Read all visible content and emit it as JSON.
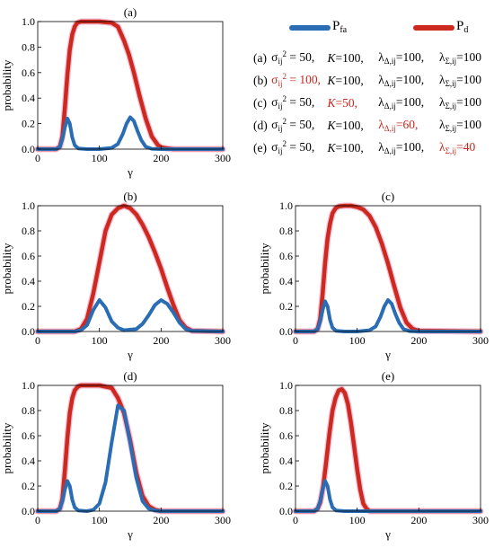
{
  "legend": {
    "pfa_label": "P",
    "pfa_sub": "fa",
    "pd_label": "P",
    "pd_sub": "d",
    "pfa_color": "#2a6db4",
    "pd_color": "#cc2a1f",
    "highlight_color": "#c4281e",
    "conditions": [
      {
        "id": "(a)",
        "sigma_val": "50,",
        "k_val": "100,",
        "ld_val": "100,",
        "ls_val": "100",
        "highlight": ""
      },
      {
        "id": "(b)",
        "sigma_val": "100,",
        "k_val": "100,",
        "ld_val": "100,",
        "ls_val": "100",
        "highlight": "sigma"
      },
      {
        "id": "(c)",
        "sigma_val": "50,",
        "k_val": "50,",
        "ld_val": "100,",
        "ls_val": "100",
        "highlight": "k"
      },
      {
        "id": "(d)",
        "sigma_val": "50,",
        "k_val": "100,",
        "ld_val": "60,",
        "ls_val": "100",
        "highlight": "ld"
      },
      {
        "id": "(e)",
        "sigma_val": "50,",
        "k_val": "100,",
        "ld_val": "100,",
        "ls_val": "40",
        "highlight": "ls"
      }
    ]
  },
  "chart_data": [
    {
      "type": "line",
      "panel_title": "(a)",
      "xlabel": "γ",
      "ylabel": "probability",
      "xlim": [
        0,
        300
      ],
      "ylim": [
        0,
        1.0
      ],
      "xticks": [
        0,
        100,
        200,
        300
      ],
      "yticks": [
        0.0,
        0.2,
        0.4,
        0.6,
        0.8,
        1.0
      ],
      "series": [
        {
          "name": "Pfa",
          "x": [
            0,
            30,
            36,
            40,
            44,
            48,
            52,
            56,
            60,
            66,
            80,
            100,
            120,
            130,
            138,
            144,
            150,
            156,
            162,
            168,
            175,
            185,
            200,
            300
          ],
          "y": [
            0,
            0,
            0.02,
            0.08,
            0.17,
            0.24,
            0.2,
            0.09,
            0.03,
            0.005,
            0,
            0,
            0.01,
            0.04,
            0.12,
            0.2,
            0.25,
            0.22,
            0.14,
            0.07,
            0.02,
            0.003,
            0,
            0
          ]
        },
        {
          "name": "Pd",
          "x": [
            0,
            30,
            36,
            40,
            44,
            48,
            52,
            56,
            60,
            64,
            70,
            80,
            100,
            120,
            130,
            140,
            148,
            156,
            165,
            175,
            185,
            195,
            200,
            210,
            220,
            300
          ],
          "y": [
            0,
            0,
            0.02,
            0.1,
            0.32,
            0.58,
            0.78,
            0.9,
            0.96,
            0.99,
            1.0,
            1.0,
            1.0,
            0.99,
            0.96,
            0.85,
            0.74,
            0.6,
            0.42,
            0.24,
            0.1,
            0.03,
            0.015,
            0.005,
            0,
            0
          ]
        }
      ]
    },
    {
      "type": "line",
      "panel_title": "(b)",
      "xlabel": "γ",
      "ylabel": "probability",
      "xlim": [
        0,
        300
      ],
      "ylim": [
        0,
        1.0
      ],
      "xticks": [
        0,
        100,
        200,
        300
      ],
      "yticks": [
        0.0,
        0.2,
        0.4,
        0.6,
        0.8,
        1.0
      ],
      "series": [
        {
          "name": "Pfa",
          "x": [
            0,
            60,
            70,
            80,
            90,
            100,
            110,
            120,
            130,
            140,
            160,
            170,
            180,
            190,
            200,
            210,
            220,
            230,
            240,
            250,
            300
          ],
          "y": [
            0,
            0,
            0.01,
            0.05,
            0.17,
            0.25,
            0.19,
            0.08,
            0.03,
            0.01,
            0.02,
            0.06,
            0.13,
            0.21,
            0.25,
            0.22,
            0.15,
            0.07,
            0.02,
            0.005,
            0
          ]
        },
        {
          "name": "Pd",
          "x": [
            0,
            60,
            70,
            80,
            90,
            100,
            110,
            120,
            130,
            140,
            150,
            160,
            170,
            180,
            190,
            200,
            210,
            220,
            230,
            240,
            250,
            300
          ],
          "y": [
            0,
            0,
            0.02,
            0.1,
            0.3,
            0.55,
            0.8,
            0.93,
            0.98,
            1.0,
            0.98,
            0.93,
            0.85,
            0.75,
            0.63,
            0.5,
            0.35,
            0.21,
            0.09,
            0.03,
            0.005,
            0
          ]
        }
      ]
    },
    {
      "type": "line",
      "panel_title": "(c)",
      "xlabel": "γ",
      "ylabel": "probability",
      "xlim": [
        0,
        300
      ],
      "ylim": [
        0,
        1.0
      ],
      "xticks": [
        0,
        100,
        200,
        300
      ],
      "yticks": [
        0.0,
        0.2,
        0.4,
        0.6,
        0.8,
        1.0
      ],
      "series": [
        {
          "name": "Pfa",
          "x": [
            0,
            30,
            36,
            40,
            44,
            48,
            52,
            56,
            60,
            66,
            80,
            100,
            120,
            130,
            138,
            144,
            150,
            156,
            162,
            168,
            175,
            185,
            200,
            300
          ],
          "y": [
            0,
            0,
            0.02,
            0.08,
            0.17,
            0.24,
            0.2,
            0.09,
            0.03,
            0.005,
            0,
            0,
            0.01,
            0.04,
            0.12,
            0.2,
            0.25,
            0.22,
            0.14,
            0.07,
            0.02,
            0.003,
            0,
            0
          ]
        },
        {
          "name": "Pd",
          "x": [
            0,
            30,
            36,
            40,
            44,
            48,
            52,
            56,
            60,
            65,
            70,
            80,
            90,
            100,
            110,
            120,
            130,
            140,
            150,
            160,
            170,
            180,
            190,
            200,
            300
          ],
          "y": [
            0,
            0,
            0.02,
            0.1,
            0.3,
            0.55,
            0.74,
            0.86,
            0.94,
            0.98,
            0.995,
            1.0,
            1.0,
            0.99,
            0.97,
            0.92,
            0.83,
            0.7,
            0.54,
            0.36,
            0.19,
            0.07,
            0.02,
            0.005,
            0
          ]
        }
      ]
    },
    {
      "type": "line",
      "panel_title": "(d)",
      "xlabel": "γ",
      "ylabel": "probability",
      "xlim": [
        0,
        300
      ],
      "ylim": [
        0,
        1.0
      ],
      "xticks": [
        0,
        100,
        200,
        300
      ],
      "yticks": [
        0.0,
        0.2,
        0.4,
        0.6,
        0.8,
        1.0
      ],
      "series": [
        {
          "name": "Pfa",
          "x": [
            0,
            30,
            36,
            40,
            44,
            48,
            52,
            56,
            60,
            66,
            80,
            90,
            100,
            110,
            120,
            130,
            140,
            150,
            160,
            170,
            180,
            190,
            200,
            300
          ],
          "y": [
            0,
            0,
            0.02,
            0.08,
            0.17,
            0.24,
            0.2,
            0.09,
            0.03,
            0.005,
            0,
            0.01,
            0.06,
            0.23,
            0.55,
            0.84,
            0.8,
            0.54,
            0.26,
            0.08,
            0.02,
            0.005,
            0,
            0
          ]
        },
        {
          "name": "Pd",
          "x": [
            0,
            30,
            36,
            40,
            44,
            48,
            52,
            56,
            60,
            65,
            70,
            80,
            100,
            120,
            130,
            140,
            150,
            160,
            170,
            180,
            190,
            200,
            300
          ],
          "y": [
            0,
            0,
            0.02,
            0.1,
            0.32,
            0.58,
            0.78,
            0.9,
            0.96,
            0.99,
            1.0,
            1.0,
            1.0,
            0.98,
            0.9,
            0.78,
            0.56,
            0.3,
            0.12,
            0.04,
            0.01,
            0,
            0
          ]
        }
      ]
    },
    {
      "type": "line",
      "panel_title": "(e)",
      "xlabel": "γ",
      "ylabel": "probability",
      "xlim": [
        0,
        300
      ],
      "ylim": [
        0,
        1.0
      ],
      "xticks": [
        0,
        100,
        200,
        300
      ],
      "yticks": [
        0.0,
        0.2,
        0.4,
        0.6,
        0.8,
        1.0
      ],
      "series": [
        {
          "name": "Pfa",
          "x": [
            0,
            30,
            36,
            40,
            44,
            48,
            52,
            56,
            60,
            66,
            80,
            300
          ],
          "y": [
            0,
            0,
            0.02,
            0.08,
            0.17,
            0.24,
            0.2,
            0.09,
            0.03,
            0.005,
            0,
            0
          ]
        },
        {
          "name": "Pd",
          "x": [
            0,
            30,
            36,
            40,
            45,
            50,
            55,
            60,
            65,
            70,
            75,
            80,
            85,
            90,
            95,
            100,
            105,
            110,
            115,
            120,
            300
          ],
          "y": [
            0,
            0,
            0.02,
            0.07,
            0.2,
            0.4,
            0.62,
            0.8,
            0.9,
            0.96,
            0.97,
            0.94,
            0.85,
            0.7,
            0.52,
            0.33,
            0.17,
            0.06,
            0.02,
            0,
            0
          ]
        }
      ]
    }
  ]
}
